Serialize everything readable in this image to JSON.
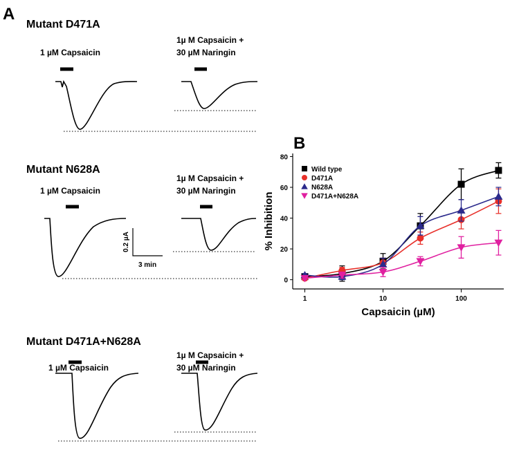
{
  "panel_a": {
    "label": "A",
    "rows": [
      {
        "title": "Mutant D471A",
        "left_label": "1 µM Capsaicin",
        "right_label": [
          "1µ M Capsaicin +",
          "30 µM Naringin"
        ]
      },
      {
        "title": "Mutant N628A",
        "left_label": "1 µM Capsaicin",
        "right_label": [
          "1µ M Capsaicin +",
          "30 µM Naringin"
        ]
      },
      {
        "title": "Mutant D471A+N628A",
        "left_label": "1 µM Capsaicin",
        "right_label": [
          "1µ M Capsaicin +",
          "30 µM Naringin"
        ]
      }
    ],
    "scale_bar": {
      "current": "0.2 µA",
      "time": "3 min"
    }
  },
  "chart_data": {
    "type": "scatter",
    "panel_label": "B",
    "x_label": "Capsaicin (µM)",
    "y_label": "% Inhibition",
    "x": [
      1,
      3,
      10,
      30,
      100,
      300
    ],
    "xscale": "log",
    "xlim": [
      0.7,
      350
    ],
    "xticks": [
      1,
      10,
      100
    ],
    "ylim": [
      -6,
      82
    ],
    "yticks": [
      0,
      20,
      40,
      60,
      80
    ],
    "legend": "upper left",
    "series": [
      {
        "name": "Wild type",
        "color": "#000000",
        "marker": "square",
        "values": [
          2,
          4,
          12,
          35,
          62,
          71
        ],
        "errors": [
          1,
          5,
          5,
          8,
          10,
          5
        ]
      },
      {
        "name": "D471A",
        "color": "#e8302a",
        "marker": "circle",
        "values": [
          1,
          6,
          11,
          27,
          39,
          51
        ],
        "errors": [
          1,
          2,
          3,
          4,
          6,
          8
        ]
      },
      {
        "name": "N628A",
        "color": "#2b2a8c",
        "marker": "triangle-up",
        "values": [
          3,
          2,
          10,
          35,
          45,
          54
        ],
        "errors": [
          1,
          2,
          4,
          6,
          7,
          6
        ]
      },
      {
        "name": "D471A+N628A",
        "color": "#e020a0",
        "marker": "triangle-down",
        "values": [
          1,
          3,
          5,
          12,
          21,
          24
        ],
        "errors": [
          1,
          2,
          3,
          3,
          7,
          8
        ]
      }
    ]
  }
}
